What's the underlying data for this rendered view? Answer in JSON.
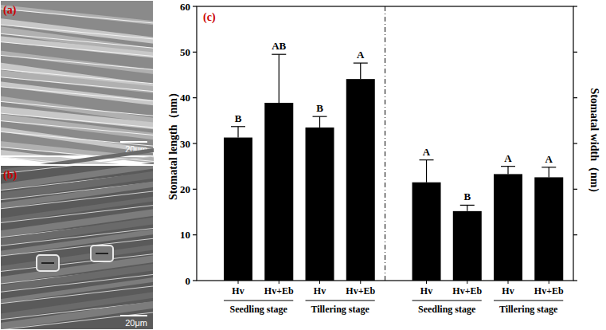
{
  "images": [
    {
      "label": "(a)",
      "scale_bar": "20μm"
    },
    {
      "label": "(b)",
      "scale_bar": "20μm"
    }
  ],
  "chart_data": {
    "type": "bar",
    "panel": "(c)",
    "categories": [
      "Hv",
      "Hv+Eb",
      "Hv",
      "Hv+Eb",
      "Hv",
      "Hv+Eb",
      "Hv",
      "Hv+Eb"
    ],
    "groups": [
      "Seedling stage",
      "Tillering stage",
      "Seedling stage",
      "Tillering stage"
    ],
    "y_label": "Stomatal length（nm）",
    "y2_label": "Stomatal width（nm）",
    "ylim": [
      0,
      60
    ],
    "yticks": [
      0,
      10,
      20,
      30,
      40,
      50,
      60
    ],
    "y2lim": [
      0,
      60
    ],
    "y2ticks": [
      0,
      10,
      20,
      30,
      40,
      50,
      60
    ],
    "tick_labels": "y",
    "grid": false,
    "series": [
      {
        "color": "#000000",
        "values": [
          31.3,
          38.9,
          33.5,
          44.1,
          null,
          null,
          null,
          null
        ],
        "errors": [
          2.4,
          10.6,
          2.4,
          3.5,
          null,
          null,
          null,
          null
        ],
        "letters": [
          "B",
          "AB",
          "B",
          "A",
          null,
          null,
          null,
          null
        ]
      },
      {
        "color": "#000000",
        "axis": "y2",
        "values": [
          null,
          null,
          null,
          null,
          21.5,
          15.2,
          23.3,
          22.6
        ],
        "errors": [
          null,
          null,
          null,
          null,
          4.9,
          1.3,
          1.7,
          2.2
        ],
        "letters": [
          null,
          null,
          null,
          null,
          "A",
          "B",
          "A",
          "A"
        ]
      }
    ]
  }
}
